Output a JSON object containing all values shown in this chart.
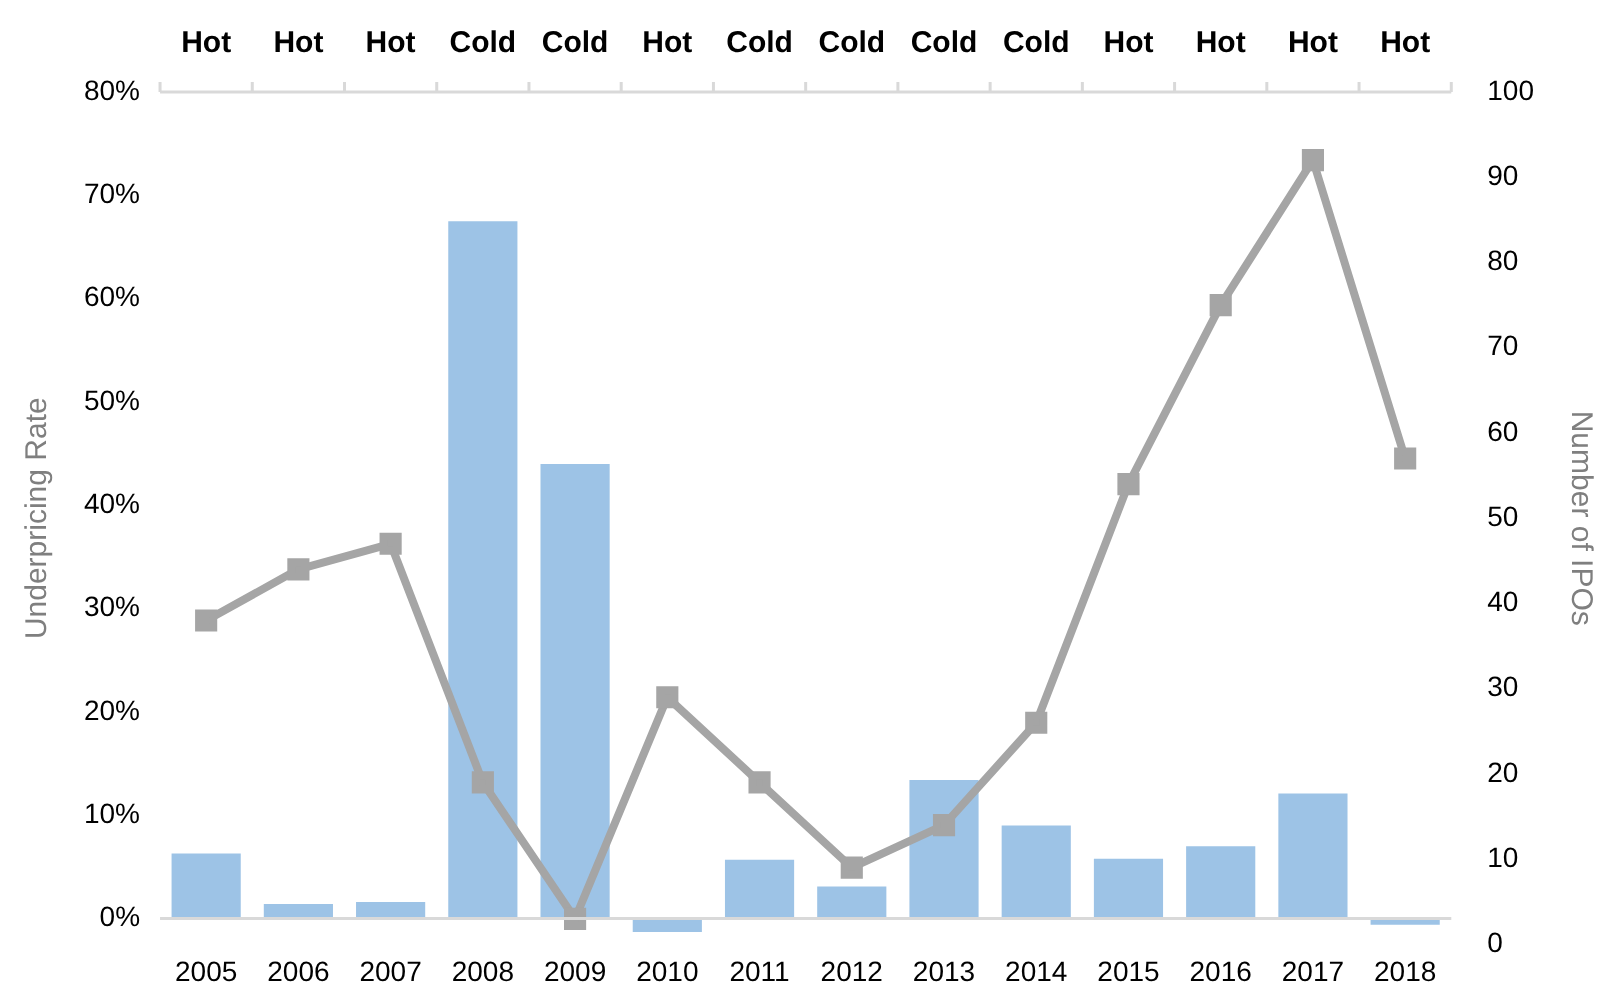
{
  "chart_data": {
    "type": "bar",
    "ylabel": "Underpricing Rate",
    "y2label": "Number of IPOs",
    "categories": [
      "2005",
      "2006",
      "2007",
      "2008",
      "2009",
      "2010",
      "2011",
      "2012",
      "2013",
      "2014",
      "2015",
      "2016",
      "2017",
      "2018"
    ],
    "series": [
      {
        "color": "#9dc3e6",
        "values": [
          6.3,
          1.4,
          1.6,
          67.5,
          44.0,
          -1.3,
          5.7,
          3.1,
          13.4,
          9.0,
          5.8,
          7.0,
          12.1,
          -0.6
        ]
      },
      {
        "type": "line",
        "axis": "y2",
        "color": "#a5a5a5",
        "marker": "square",
        "values": [
          38,
          44,
          47,
          19,
          3,
          29,
          19,
          9,
          14,
          26,
          54,
          75,
          92,
          57
        ]
      }
    ],
    "ylim": [
      -2.5,
      80
    ],
    "yticks": [
      {
        "value": 0,
        "label": "0%"
      },
      {
        "value": 10,
        "label": "10%"
      },
      {
        "value": 20,
        "label": "20%"
      },
      {
        "value": 30,
        "label": "30%"
      },
      {
        "value": 40,
        "label": "40%"
      },
      {
        "value": 50,
        "label": "50%"
      },
      {
        "value": 60,
        "label": "60%"
      },
      {
        "value": 70,
        "label": "70%"
      },
      {
        "value": 80,
        "label": "80%"
      }
    ],
    "y2lim": [
      0,
      100
    ],
    "y2ticks": [
      0,
      10,
      20,
      30,
      40,
      50,
      60,
      70,
      80,
      90,
      100
    ],
    "annotations": [
      "Hot",
      "Hot",
      "Hot",
      "Cold",
      "Cold",
      "Hot",
      "Cold",
      "Cold",
      "Cold",
      "Cold",
      "Hot",
      "Hot",
      "Hot",
      "Hot"
    ],
    "grid": false,
    "legend": false
  }
}
